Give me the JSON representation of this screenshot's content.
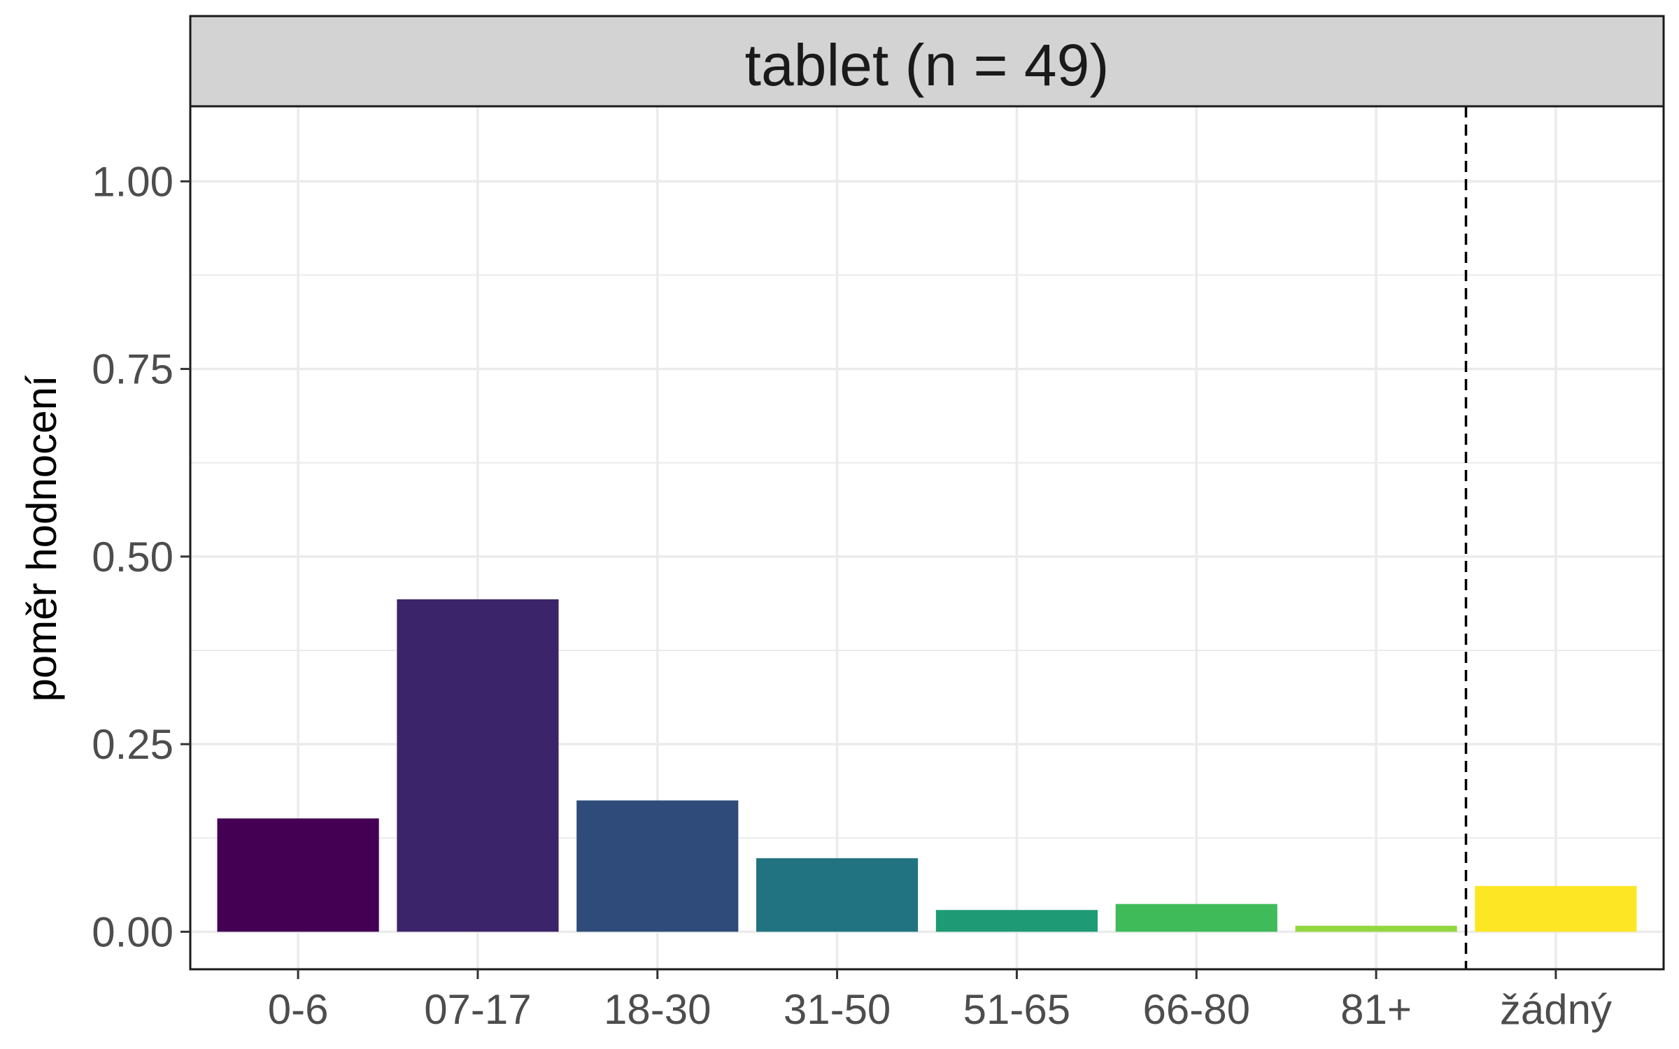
{
  "chart_data": {
    "type": "bar",
    "facet_title": "tablet (n = 49)",
    "categories": [
      "0-6",
      "07-17",
      "18-30",
      "31-50",
      "51-65",
      "66-80",
      "81+",
      "žádný"
    ],
    "values": [
      0.151,
      0.443,
      0.175,
      0.098,
      0.029,
      0.037,
      0.008,
      0.061
    ],
    "colors": [
      "#440154",
      "#3B2469",
      "#2E4B7A",
      "#227381",
      "#1E9A74",
      "#3FBB5A",
      "#92D73F",
      "#FDE725"
    ],
    "xlabel": "",
    "ylabel": "poměr hodnocení",
    "ylim": [
      -0.05,
      1.1
    ],
    "yticks": [
      0.0,
      0.25,
      0.5,
      0.75,
      1.0
    ],
    "ytick_labels": [
      "0.00",
      "0.25",
      "0.50",
      "0.75",
      "1.00"
    ],
    "separator_after_category": "81+",
    "grid": true,
    "legend": "none"
  }
}
